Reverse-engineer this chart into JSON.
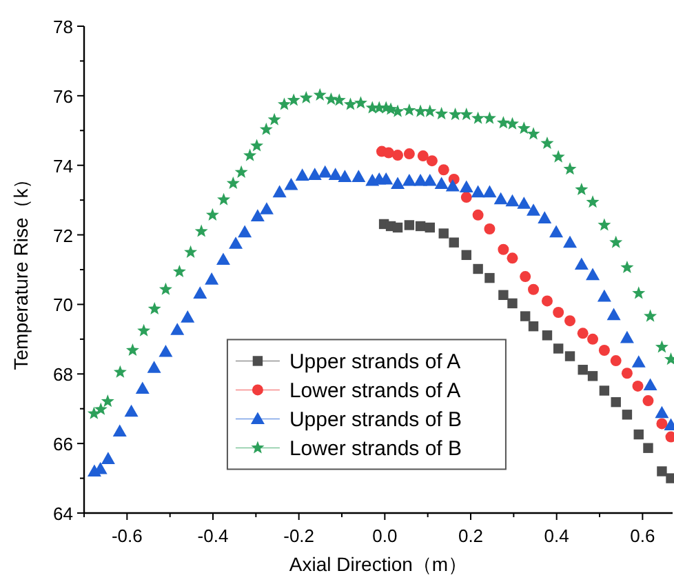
{
  "chart_data": {
    "type": "scatter",
    "xlabel": "Axial Direction（m）",
    "ylabel": "Temperature Rise（k）",
    "xlim": [
      -0.7,
      0.67
    ],
    "ylim": [
      64,
      78
    ],
    "xticks": [
      -0.6,
      -0.4,
      -0.2,
      {
        "value": 0,
        "label": "0.0"
      },
      0.2,
      0.4,
      0.6
    ],
    "yticks": [
      64,
      66,
      68,
      70,
      72,
      74,
      76,
      78
    ],
    "legend": "bottom",
    "grid": false,
    "series": [
      {
        "name": "Upper strands of A",
        "color": "#4d4d4d",
        "marker": "square",
        "x": [
          -0.002,
          0.014,
          0.03,
          0.057,
          0.083,
          0.105,
          0.137,
          0.161,
          0.19,
          0.217,
          0.244,
          0.276,
          0.297,
          0.327,
          0.346,
          0.378,
          0.404,
          0.431,
          0.461,
          0.484,
          0.511,
          0.538,
          0.564,
          0.591,
          0.613,
          0.645,
          0.666
        ],
        "values": [
          72.31,
          72.25,
          72.21,
          72.28,
          72.25,
          72.21,
          72.04,
          71.78,
          71.42,
          71.02,
          70.76,
          70.27,
          70.03,
          69.66,
          69.37,
          69.11,
          68.73,
          68.51,
          68.12,
          67.94,
          67.52,
          67.19,
          66.83,
          66.26,
          65.87,
          65.2,
          65.0
        ]
      },
      {
        "name": "Lower strands of A",
        "color": "#f23c3c",
        "marker": "circle",
        "x": [
          -0.007,
          0.009,
          0.03,
          0.057,
          0.089,
          0.11,
          0.137,
          0.161,
          0.19,
          0.217,
          0.244,
          0.276,
          0.297,
          0.327,
          0.346,
          0.378,
          0.404,
          0.431,
          0.461,
          0.484,
          0.511,
          0.538,
          0.564,
          0.589,
          0.613,
          0.645,
          0.666
        ],
        "values": [
          74.4,
          74.36,
          74.29,
          74.33,
          74.27,
          74.13,
          73.87,
          73.6,
          73.08,
          72.57,
          72.17,
          71.58,
          71.33,
          70.8,
          70.43,
          70.1,
          69.77,
          69.53,
          69.17,
          69.0,
          68.68,
          68.38,
          68.02,
          67.65,
          67.23,
          66.57,
          66.19
        ]
      },
      {
        "name": "Upper strands of B",
        "color": "#1f5fd6",
        "marker": "triangle",
        "x": [
          -0.676,
          -0.662,
          -0.644,
          -0.617,
          -0.59,
          -0.564,
          -0.537,
          -0.51,
          -0.483,
          -0.459,
          -0.43,
          -0.403,
          -0.376,
          -0.347,
          -0.326,
          -0.296,
          -0.275,
          -0.245,
          -0.218,
          -0.192,
          -0.163,
          -0.139,
          -0.115,
          -0.093,
          -0.061,
          -0.029,
          -0.013,
          0.003,
          0.03,
          0.057,
          0.083,
          0.105,
          0.132,
          0.158,
          0.19,
          0.217,
          0.244,
          0.27,
          0.297,
          0.324,
          0.346,
          0.372,
          0.399,
          0.431,
          0.458,
          0.484,
          0.511,
          0.533,
          0.564,
          0.591,
          0.618,
          0.645,
          0.666
        ],
        "values": [
          65.2,
          65.27,
          65.56,
          66.35,
          66.92,
          67.58,
          68.18,
          68.64,
          69.27,
          69.63,
          70.32,
          70.72,
          71.29,
          71.75,
          72.08,
          72.54,
          72.74,
          73.23,
          73.44,
          73.71,
          73.73,
          73.8,
          73.73,
          73.67,
          73.67,
          73.56,
          73.6,
          73.6,
          73.47,
          73.56,
          73.56,
          73.56,
          73.47,
          73.4,
          73.37,
          73.23,
          73.23,
          73.03,
          72.97,
          72.9,
          72.7,
          72.48,
          72.08,
          71.78,
          71.15,
          70.85,
          70.23,
          69.7,
          69.04,
          68.34,
          67.68,
          66.88,
          66.53
        ]
      },
      {
        "name": "Lower strands of B",
        "color": "#2ca05a",
        "marker": "star",
        "x": [
          -0.677,
          -0.661,
          -0.645,
          -0.616,
          -0.587,
          -0.561,
          -0.536,
          -0.51,
          -0.478,
          -0.452,
          -0.427,
          -0.401,
          -0.375,
          -0.353,
          -0.334,
          -0.314,
          -0.298,
          -0.276,
          -0.257,
          -0.234,
          -0.212,
          -0.183,
          -0.151,
          -0.125,
          -0.106,
          -0.08,
          -0.056,
          -0.029,
          -0.013,
          0.003,
          0.014,
          0.03,
          0.057,
          0.083,
          0.105,
          0.132,
          0.164,
          0.19,
          0.217,
          0.244,
          0.276,
          0.297,
          0.324,
          0.346,
          0.378,
          0.404,
          0.431,
          0.458,
          0.484,
          0.511,
          0.538,
          0.564,
          0.591,
          0.618,
          0.645,
          0.666
        ],
        "values": [
          66.86,
          66.98,
          67.21,
          68.05,
          68.68,
          69.24,
          69.87,
          70.43,
          70.94,
          71.5,
          72.1,
          72.57,
          73.01,
          73.48,
          73.8,
          74.28,
          74.56,
          75.03,
          75.31,
          75.75,
          75.87,
          75.94,
          76.02,
          75.9,
          75.87,
          75.75,
          75.79,
          75.65,
          75.65,
          75.65,
          75.61,
          75.55,
          75.58,
          75.55,
          75.55,
          75.48,
          75.46,
          75.46,
          75.35,
          75.35,
          75.22,
          75.19,
          75.06,
          74.9,
          74.63,
          74.24,
          73.89,
          73.3,
          72.94,
          72.28,
          71.78,
          71.06,
          70.32,
          69.66,
          68.77,
          68.42
        ]
      }
    ]
  }
}
